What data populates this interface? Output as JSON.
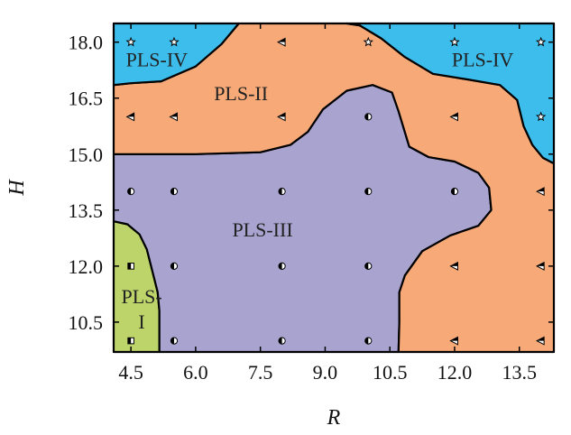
{
  "chart_data": {
    "type": "scatter",
    "xlabel": "R",
    "ylabel": "H",
    "xlim": [
      4.1,
      14.3
    ],
    "ylim": [
      9.7,
      18.5
    ],
    "xticks": [
      "4.5",
      "6.0",
      "7.5",
      "9.0",
      "10.5",
      "12.0",
      "13.5"
    ],
    "yticks": [
      "10.5",
      "12.0",
      "13.5",
      "15.0",
      "16.5",
      "18.0"
    ],
    "regions": [
      {
        "label": "PLS-I",
        "label_lines": [
          "PLS-",
          "I"
        ],
        "color": "#bcd46a",
        "boundary": [
          [
            4.1,
            9.7
          ],
          [
            5.16,
            9.7
          ],
          [
            5.16,
            10.8
          ],
          [
            5.12,
            11.3
          ],
          [
            5.0,
            11.85
          ],
          [
            4.87,
            12.45
          ],
          [
            4.7,
            12.85
          ],
          [
            4.42,
            13.12
          ],
          [
            4.1,
            13.2
          ]
        ]
      },
      {
        "label": "PLS-III",
        "color": "#a9a3d0",
        "boundary": [
          [
            4.1,
            13.2
          ],
          [
            4.42,
            13.12
          ],
          [
            4.7,
            12.85
          ],
          [
            4.87,
            12.45
          ],
          [
            5.0,
            11.85
          ],
          [
            5.12,
            11.3
          ],
          [
            5.16,
            10.8
          ],
          [
            5.16,
            9.7
          ],
          [
            10.7,
            9.7
          ],
          [
            10.72,
            10.5
          ],
          [
            10.72,
            11.3
          ],
          [
            10.85,
            11.75
          ],
          [
            11.25,
            12.4
          ],
          [
            11.9,
            12.82
          ],
          [
            12.55,
            13.08
          ],
          [
            12.85,
            13.5
          ],
          [
            12.8,
            14.1
          ],
          [
            12.55,
            14.5
          ],
          [
            12.0,
            14.8
          ],
          [
            11.4,
            14.92
          ],
          [
            10.95,
            15.2
          ],
          [
            10.7,
            16.15
          ],
          [
            10.55,
            16.65
          ],
          [
            10.1,
            16.85
          ],
          [
            9.5,
            16.7
          ],
          [
            8.95,
            16.2
          ],
          [
            8.6,
            15.6
          ],
          [
            8.2,
            15.25
          ],
          [
            7.5,
            15.05
          ],
          [
            6.0,
            15.0
          ],
          [
            4.1,
            15.0
          ]
        ]
      },
      {
        "label": "PLS-II",
        "color": "#f7aa78",
        "boundary": [
          [
            4.1,
            15.0
          ],
          [
            6.0,
            15.0
          ],
          [
            7.5,
            15.05
          ],
          [
            8.2,
            15.25
          ],
          [
            8.6,
            15.6
          ],
          [
            8.95,
            16.2
          ],
          [
            9.5,
            16.7
          ],
          [
            10.1,
            16.85
          ],
          [
            10.55,
            16.65
          ],
          [
            10.7,
            16.15
          ],
          [
            10.95,
            15.2
          ],
          [
            11.4,
            14.92
          ],
          [
            12.0,
            14.8
          ],
          [
            12.55,
            14.5
          ],
          [
            12.8,
            14.1
          ],
          [
            12.85,
            13.5
          ],
          [
            12.55,
            13.08
          ],
          [
            11.9,
            12.82
          ],
          [
            11.25,
            12.4
          ],
          [
            10.85,
            11.75
          ],
          [
            10.72,
            11.3
          ],
          [
            10.72,
            10.5
          ],
          [
            10.7,
            9.7
          ],
          [
            14.3,
            9.7
          ],
          [
            14.3,
            14.75
          ],
          [
            14.05,
            14.9
          ],
          [
            13.8,
            15.25
          ],
          [
            13.6,
            15.75
          ],
          [
            13.45,
            16.45
          ],
          [
            13.05,
            16.85
          ],
          [
            12.3,
            17.0
          ],
          [
            11.5,
            17.15
          ],
          [
            10.85,
            17.6
          ],
          [
            10.3,
            18.1
          ],
          [
            9.8,
            18.45
          ],
          [
            9.5,
            18.5
          ],
          [
            7.0,
            18.5
          ],
          [
            6.6,
            17.95
          ],
          [
            6.0,
            17.35
          ],
          [
            5.2,
            16.95
          ],
          [
            4.5,
            16.9
          ],
          [
            4.1,
            16.85
          ]
        ]
      },
      {
        "label": "PLS-IV",
        "color": "#3dbdec",
        "boundary": [
          [
            4.1,
            16.85
          ],
          [
            4.5,
            16.9
          ],
          [
            5.2,
            16.95
          ],
          [
            6.0,
            17.35
          ],
          [
            6.6,
            17.95
          ],
          [
            7.0,
            18.5
          ],
          [
            4.1,
            18.5
          ]
        ]
      },
      {
        "label": "PLS-IV",
        "color": "#3dbdec",
        "boundary": [
          [
            9.5,
            18.5
          ],
          [
            9.8,
            18.45
          ],
          [
            10.3,
            18.1
          ],
          [
            10.85,
            17.6
          ],
          [
            11.5,
            17.15
          ],
          [
            12.3,
            17.0
          ],
          [
            13.05,
            16.85
          ],
          [
            13.45,
            16.45
          ],
          [
            13.6,
            15.75
          ],
          [
            13.8,
            15.25
          ],
          [
            14.05,
            14.9
          ],
          [
            14.3,
            14.75
          ],
          [
            14.3,
            18.5
          ]
        ]
      }
    ],
    "region_labels": [
      {
        "lines": [
          "PLS-IV"
        ],
        "x": 5.1,
        "y": 17.35
      },
      {
        "lines": [
          "PLS-IV"
        ],
        "x": 12.65,
        "y": 17.35
      },
      {
        "lines": [
          "PLS-II"
        ],
        "x": 7.05,
        "y": 16.45
      },
      {
        "lines": [
          "PLS-III"
        ],
        "x": 7.55,
        "y": 12.8
      },
      {
        "lines": [
          "PLS-",
          "I"
        ],
        "x": 4.75,
        "y": 11.0
      }
    ],
    "points": [
      {
        "x": 4.5,
        "y": 18.0,
        "marker": "star"
      },
      {
        "x": 5.5,
        "y": 18.0,
        "marker": "star"
      },
      {
        "x": 8.0,
        "y": 18.0,
        "marker": "triangle"
      },
      {
        "x": 10.0,
        "y": 18.0,
        "marker": "star"
      },
      {
        "x": 12.0,
        "y": 18.0,
        "marker": "star"
      },
      {
        "x": 14.0,
        "y": 18.0,
        "marker": "star"
      },
      {
        "x": 4.5,
        "y": 16.0,
        "marker": "triangle"
      },
      {
        "x": 5.5,
        "y": 16.0,
        "marker": "triangle"
      },
      {
        "x": 8.0,
        "y": 16.0,
        "marker": "triangle"
      },
      {
        "x": 10.0,
        "y": 16.0,
        "marker": "circle"
      },
      {
        "x": 12.0,
        "y": 16.0,
        "marker": "triangle"
      },
      {
        "x": 14.0,
        "y": 16.0,
        "marker": "star"
      },
      {
        "x": 4.5,
        "y": 14.0,
        "marker": "circle"
      },
      {
        "x": 5.5,
        "y": 14.0,
        "marker": "circle"
      },
      {
        "x": 8.0,
        "y": 14.0,
        "marker": "circle"
      },
      {
        "x": 10.0,
        "y": 14.0,
        "marker": "circle"
      },
      {
        "x": 12.0,
        "y": 14.0,
        "marker": "circle"
      },
      {
        "x": 14.0,
        "y": 14.0,
        "marker": "triangle"
      },
      {
        "x": 4.5,
        "y": 12.0,
        "marker": "square"
      },
      {
        "x": 5.5,
        "y": 12.0,
        "marker": "circle"
      },
      {
        "x": 8.0,
        "y": 12.0,
        "marker": "circle"
      },
      {
        "x": 10.0,
        "y": 12.0,
        "marker": "circle"
      },
      {
        "x": 12.0,
        "y": 12.0,
        "marker": "triangle"
      },
      {
        "x": 14.0,
        "y": 12.0,
        "marker": "triangle"
      },
      {
        "x": 4.5,
        "y": 10.0,
        "marker": "square"
      },
      {
        "x": 5.5,
        "y": 10.0,
        "marker": "circle"
      },
      {
        "x": 8.0,
        "y": 10.0,
        "marker": "circle"
      },
      {
        "x": 10.0,
        "y": 10.0,
        "marker": "circle"
      },
      {
        "x": 12.0,
        "y": 10.0,
        "marker": "triangle"
      },
      {
        "x": 14.0,
        "y": 10.0,
        "marker": "triangle"
      }
    ],
    "grid": false,
    "legend": "none"
  }
}
